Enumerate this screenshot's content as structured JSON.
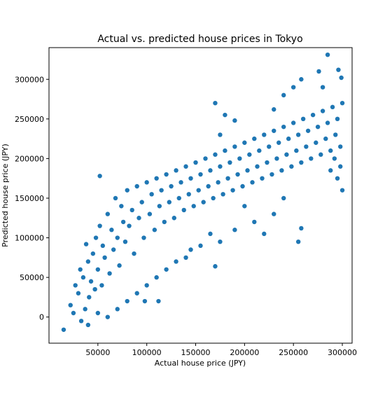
{
  "chart_data": {
    "type": "scatter",
    "title": "Actual vs. predicted house prices in Tokyo",
    "xlabel": "Actual house price (JPY)",
    "ylabel": "Predicted house price (JPY)",
    "xlim": [
      0,
      310000
    ],
    "ylim": [
      -33000,
      340000
    ],
    "xticks": [
      50000,
      100000,
      150000,
      200000,
      250000,
      300000
    ],
    "xtick_labels": [
      "50000",
      "100000",
      "150000",
      "200000",
      "250000",
      "300000"
    ],
    "yticks": [
      0,
      50000,
      100000,
      150000,
      200000,
      250000,
      300000
    ],
    "ytick_labels": [
      "0",
      "50000",
      "100000",
      "150000",
      "200000",
      "250000",
      "300000"
    ],
    "grid": false,
    "marker_color": "#1f77b4",
    "series": [
      {
        "points": [
          [
            15000,
            -16000
          ],
          [
            22000,
            15000
          ],
          [
            25000,
            5000
          ],
          [
            27000,
            40000
          ],
          [
            30000,
            30000
          ],
          [
            32000,
            60000
          ],
          [
            33000,
            -5000
          ],
          [
            35000,
            50000
          ],
          [
            37000,
            10000
          ],
          [
            38000,
            92000
          ],
          [
            40000,
            70000
          ],
          [
            41000,
            25000
          ],
          [
            43000,
            45000
          ],
          [
            45000,
            80000
          ],
          [
            47000,
            35000
          ],
          [
            48000,
            100000
          ],
          [
            50000,
            60000
          ],
          [
            52000,
            115000
          ],
          [
            54000,
            40000
          ],
          [
            55000,
            90000
          ],
          [
            57000,
            75000
          ],
          [
            60000,
            130000
          ],
          [
            62000,
            55000
          ],
          [
            64000,
            110000
          ],
          [
            66000,
            85000
          ],
          [
            68000,
            150000
          ],
          [
            70000,
            100000
          ],
          [
            72000,
            65000
          ],
          [
            74000,
            140000
          ],
          [
            76000,
            120000
          ],
          [
            78000,
            95000
          ],
          [
            80000,
            160000
          ],
          [
            82000,
            115000
          ],
          [
            85000,
            135000
          ],
          [
            87000,
            80000
          ],
          [
            90000,
            165000
          ],
          [
            92000,
            125000
          ],
          [
            95000,
            145000
          ],
          [
            97000,
            100000
          ],
          [
            100000,
            170000
          ],
          [
            103000,
            130000
          ],
          [
            105000,
            155000
          ],
          [
            108000,
            110000
          ],
          [
            110000,
            175000
          ],
          [
            113000,
            140000
          ],
          [
            115000,
            160000
          ],
          [
            118000,
            120000
          ],
          [
            120000,
            180000
          ],
          [
            123000,
            145000
          ],
          [
            125000,
            165000
          ],
          [
            128000,
            125000
          ],
          [
            130000,
            185000
          ],
          [
            133000,
            150000
          ],
          [
            135000,
            170000
          ],
          [
            138000,
            135000
          ],
          [
            140000,
            190000
          ],
          [
            143000,
            155000
          ],
          [
            145000,
            175000
          ],
          [
            148000,
            140000
          ],
          [
            150000,
            195000
          ],
          [
            153000,
            160000
          ],
          [
            155000,
            180000
          ],
          [
            158000,
            145000
          ],
          [
            160000,
            200000
          ],
          [
            163000,
            165000
          ],
          [
            165000,
            185000
          ],
          [
            168000,
            150000
          ],
          [
            170000,
            205000
          ],
          [
            173000,
            170000
          ],
          [
            175000,
            190000
          ],
          [
            178000,
            155000
          ],
          [
            180000,
            210000
          ],
          [
            183000,
            175000
          ],
          [
            185000,
            195000
          ],
          [
            188000,
            160000
          ],
          [
            190000,
            215000
          ],
          [
            193000,
            180000
          ],
          [
            195000,
            200000
          ],
          [
            198000,
            165000
          ],
          [
            200000,
            220000
          ],
          [
            203000,
            185000
          ],
          [
            205000,
            205000
          ],
          [
            208000,
            170000
          ],
          [
            210000,
            225000
          ],
          [
            213000,
            190000
          ],
          [
            215000,
            210000
          ],
          [
            218000,
            175000
          ],
          [
            220000,
            230000
          ],
          [
            223000,
            195000
          ],
          [
            225000,
            215000
          ],
          [
            228000,
            180000
          ],
          [
            230000,
            235000
          ],
          [
            233000,
            200000
          ],
          [
            235000,
            220000
          ],
          [
            238000,
            185000
          ],
          [
            240000,
            240000
          ],
          [
            243000,
            205000
          ],
          [
            245000,
            225000
          ],
          [
            248000,
            190000
          ],
          [
            250000,
            245000
          ],
          [
            253000,
            210000
          ],
          [
            255000,
            230000
          ],
          [
            258000,
            195000
          ],
          [
            260000,
            250000
          ],
          [
            263000,
            215000
          ],
          [
            265000,
            235000
          ],
          [
            268000,
            200000
          ],
          [
            270000,
            255000
          ],
          [
            273000,
            220000
          ],
          [
            275000,
            240000
          ],
          [
            278000,
            205000
          ],
          [
            280000,
            260000
          ],
          [
            283000,
            225000
          ],
          [
            285000,
            245000
          ],
          [
            288000,
            210000
          ],
          [
            290000,
            265000
          ],
          [
            293000,
            230000
          ],
          [
            295000,
            250000
          ],
          [
            298000,
            215000
          ],
          [
            300000,
            270000
          ],
          [
            298000,
            190000
          ],
          [
            295000,
            175000
          ],
          [
            292000,
            200000
          ],
          [
            288000,
            185000
          ],
          [
            300000,
            160000
          ],
          [
            285000,
            331000
          ],
          [
            296000,
            312000
          ],
          [
            276000,
            310000
          ],
          [
            299000,
            302000
          ],
          [
            280000,
            290000
          ],
          [
            258000,
            300000
          ],
          [
            250000,
            290000
          ],
          [
            240000,
            280000
          ],
          [
            230000,
            262000
          ],
          [
            170000,
            270000
          ],
          [
            180000,
            255000
          ],
          [
            190000,
            248000
          ],
          [
            175000,
            230000
          ],
          [
            255000,
            95000
          ],
          [
            258000,
            112000
          ],
          [
            240000,
            150000
          ],
          [
            230000,
            130000
          ],
          [
            220000,
            105000
          ],
          [
            210000,
            120000
          ],
          [
            200000,
            140000
          ],
          [
            190000,
            110000
          ],
          [
            175000,
            95000
          ],
          [
            165000,
            105000
          ],
          [
            155000,
            90000
          ],
          [
            145000,
            85000
          ],
          [
            170000,
            64000
          ],
          [
            140000,
            75000
          ],
          [
            130000,
            70000
          ],
          [
            120000,
            60000
          ],
          [
            110000,
            50000
          ],
          [
            100000,
            40000
          ],
          [
            90000,
            30000
          ],
          [
            80000,
            20000
          ],
          [
            70000,
            10000
          ],
          [
            60000,
            0
          ],
          [
            50000,
            5000
          ],
          [
            40000,
            -10000
          ],
          [
            52000,
            178000
          ],
          [
            98000,
            20000
          ],
          [
            112000,
            20000
          ]
        ]
      }
    ]
  }
}
